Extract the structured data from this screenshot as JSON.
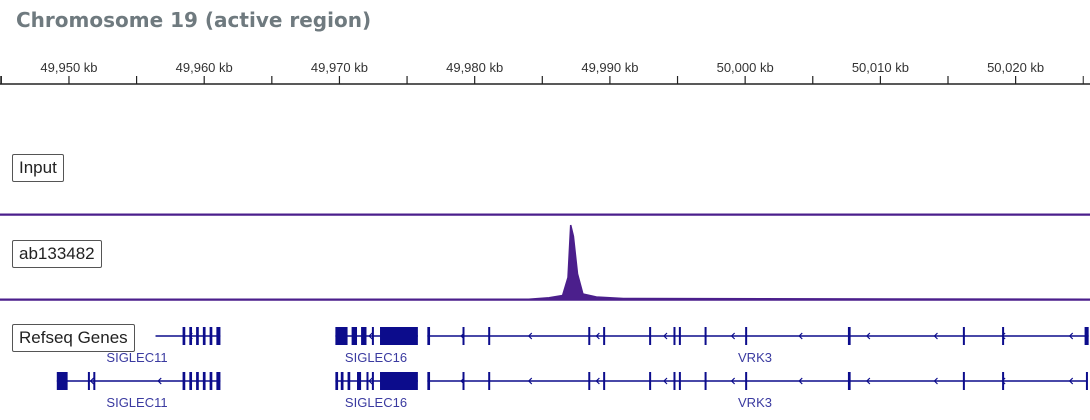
{
  "title": "Chromosome 19 (active region)",
  "colors": {
    "signal": "#4b1f8c",
    "gene": "#0c0c8c",
    "gene_label": "#3a3aa0",
    "axis": "#222222",
    "title": "#6f7a7f"
  },
  "chart_data": {
    "type": "area",
    "title": "Chromosome 19 (active region)",
    "x_unit": "kb",
    "xlim": [
      49944.9,
      50025.5
    ],
    "ticks": [
      49950,
      49960,
      49970,
      49980,
      49990,
      50000,
      50010,
      50020
    ],
    "tick_labels": [
      "49,950 kb",
      "49,960 kb",
      "49,970 kb",
      "49,980 kb",
      "49,990 kb",
      "50,000 kb",
      "50,010 kb",
      "50,020 kb"
    ],
    "tracks": [
      {
        "name": "Input",
        "points": [
          [
            49944.9,
            1
          ],
          [
            50025.5,
            1
          ]
        ]
      },
      {
        "name": "ab133482",
        "points": [
          [
            49944.9,
            1
          ],
          [
            49984,
            1
          ],
          [
            49985.5,
            3
          ],
          [
            49986.5,
            6
          ],
          [
            49986.9,
            30
          ],
          [
            49987.1,
            100
          ],
          [
            49987.3,
            85
          ],
          [
            49987.6,
            35
          ],
          [
            49988,
            8
          ],
          [
            49989,
            4
          ],
          [
            49991,
            2
          ],
          [
            50025.5,
            1
          ]
        ]
      }
    ],
    "genes_label": "Refseq Genes",
    "genes": [
      {
        "name": "SIGLEC11",
        "row": 0,
        "start": 49956.4,
        "end": 49961.2,
        "exons": [
          [
            49958.4,
            49958.6
          ],
          [
            49958.9,
            49959.1
          ],
          [
            49959.4,
            49959.6
          ],
          [
            49959.9,
            49960.1
          ],
          [
            49960.4,
            49960.6
          ],
          [
            49960.9,
            49961.2
          ]
        ]
      },
      {
        "name": "SIGLEC16",
        "row": 0,
        "start": 49969.7,
        "end": 49975.8,
        "exons": [
          [
            49969.7,
            49970.6
          ],
          [
            49970.9,
            49971.3
          ],
          [
            49971.6,
            49972.0
          ],
          [
            49972.4,
            49972.5
          ],
          [
            49973.0,
            49975.8
          ]
        ]
      },
      {
        "name": "VRK3",
        "row": 0,
        "start": 49976.5,
        "end": 50025.4,
        "exons": [
          [
            49976.5,
            49976.7
          ],
          [
            49979.1,
            49979.2
          ],
          [
            49981.0,
            49981.1
          ],
          [
            49988.4,
            49988.5
          ],
          [
            49989.5,
            49989.6
          ],
          [
            49992.9,
            49993.0
          ],
          [
            49994.7,
            49994.8
          ],
          [
            49995.1,
            49995.2
          ],
          [
            49997.0,
            49997.1
          ],
          [
            50000.0,
            50000.1
          ],
          [
            50007.6,
            50007.8
          ],
          [
            50016.1,
            50016.2
          ],
          [
            50019.0,
            50019.1
          ],
          [
            50025.1,
            50025.4
          ]
        ]
      },
      {
        "name": "SIGLEC11",
        "row": 1,
        "start": 49949.1,
        "end": 49961.2,
        "exons": [
          [
            49949.1,
            49949.9
          ],
          [
            49951.4,
            49951.5
          ],
          [
            49951.8,
            49951.9
          ],
          [
            49958.4,
            49958.6
          ],
          [
            49958.9,
            49959.1
          ],
          [
            49959.4,
            49959.6
          ],
          [
            49959.9,
            49960.1
          ],
          [
            49960.4,
            49960.6
          ],
          [
            49960.9,
            49961.2
          ]
        ]
      },
      {
        "name": "SIGLEC16",
        "row": 1,
        "start": 49969.7,
        "end": 49975.8,
        "exons": [
          [
            49969.7,
            49969.9
          ],
          [
            49970.1,
            49970.3
          ],
          [
            49970.6,
            49970.8
          ],
          [
            49971.3,
            49971.6
          ],
          [
            49972.0,
            49972.1
          ],
          [
            49972.4,
            49972.5
          ],
          [
            49973.0,
            49975.8
          ]
        ]
      },
      {
        "name": "VRK3",
        "row": 1,
        "start": 49976.5,
        "end": 50025.3,
        "exons": [
          [
            49976.5,
            49976.7
          ],
          [
            49979.1,
            49979.2
          ],
          [
            49981.0,
            49981.1
          ],
          [
            49988.4,
            49988.5
          ],
          [
            49989.5,
            49989.6
          ],
          [
            49992.9,
            49993.0
          ],
          [
            49994.7,
            49994.8
          ],
          [
            49995.1,
            49995.2
          ],
          [
            49997.0,
            49997.1
          ],
          [
            50000.0,
            50000.1
          ],
          [
            50007.6,
            50007.8
          ],
          [
            50016.1,
            50016.2
          ],
          [
            50019.0,
            50019.1
          ],
          [
            50025.2,
            50025.3
          ]
        ]
      }
    ]
  }
}
